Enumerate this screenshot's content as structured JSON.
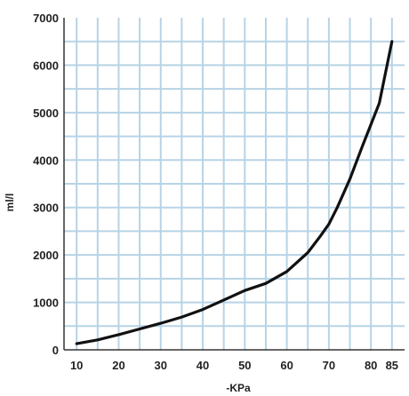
{
  "chart_data": {
    "type": "line",
    "title": "",
    "xlabel": "-KPa",
    "ylabel": "ml/l",
    "x_ticks": [
      10,
      20,
      30,
      40,
      50,
      60,
      70,
      80,
      85
    ],
    "y_ticks": [
      0,
      1000,
      2000,
      3000,
      4000,
      5000,
      6000,
      7000
    ],
    "xlim": [
      7,
      88
    ],
    "ylim": [
      0,
      7000
    ],
    "grid": true,
    "legend": "none",
    "series": [
      {
        "x": [
          10,
          15,
          20,
          25,
          30,
          35,
          40,
          45,
          50,
          55,
          60,
          65,
          68,
          70,
          72,
          75,
          78,
          80,
          82,
          85
        ],
        "y": [
          130,
          210,
          320,
          440,
          560,
          690,
          850,
          1050,
          1250,
          1400,
          1650,
          2050,
          2400,
          2650,
          3000,
          3600,
          4300,
          4750,
          5200,
          6500
        ],
        "color": "#111111"
      }
    ],
    "colors": {
      "grid": "#b7d3e6",
      "plot_background": "#ffffff",
      "line": "#111111"
    }
  }
}
